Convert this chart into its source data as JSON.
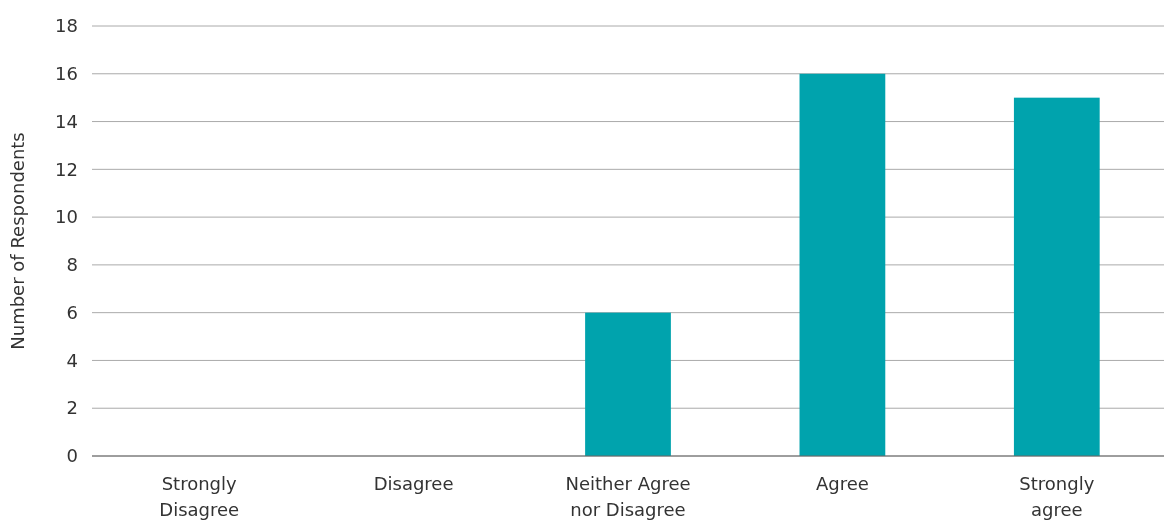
{
  "chart_data": {
    "type": "bar",
    "ylabel": "Number of Respondents",
    "categories": [
      "Strongly Disagree",
      "Disagree",
      "Neither Agree nor Disagree",
      "Agree",
      "Strongly agree"
    ],
    "values": [
      0,
      0,
      6,
      16,
      15
    ],
    "color": "#00a3ad",
    "ylim": [
      0,
      18
    ],
    "yticks": [
      0,
      2,
      4,
      6,
      8,
      10,
      12,
      14,
      16,
      18
    ],
    "grid": "y"
  }
}
